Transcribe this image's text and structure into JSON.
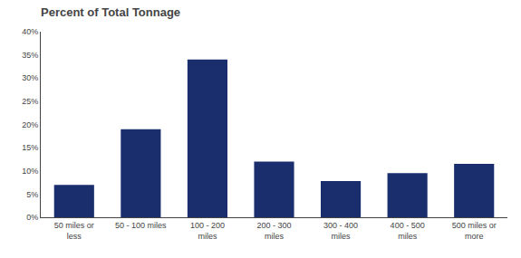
{
  "chart_data": {
    "type": "bar",
    "title": "Percent of Total Tonnage",
    "categories": [
      "50 miles or\nless",
      "50 - 100 miles",
      "100 - 200\nmiles",
      "200 - 300\nmiles",
      "300 - 400\nmiles",
      "400 - 500\nmiles",
      "500 miles or\nmore"
    ],
    "values": [
      7.0,
      19.0,
      34.0,
      12.0,
      7.8,
      9.5,
      11.5
    ],
    "color": "#1a2e6e",
    "ylim": [
      0,
      40
    ],
    "yticks": [
      {
        "value": 0,
        "label": "0%"
      },
      {
        "value": 5,
        "label": "5%"
      },
      {
        "value": 10,
        "label": "10%"
      },
      {
        "value": 15,
        "label": "15%"
      },
      {
        "value": 20,
        "label": "20%"
      },
      {
        "value": 25,
        "label": "25%"
      },
      {
        "value": 30,
        "label": "30%"
      },
      {
        "value": 35,
        "label": "35%"
      },
      {
        "value": 40,
        "label": "40%"
      }
    ],
    "grid": false
  }
}
